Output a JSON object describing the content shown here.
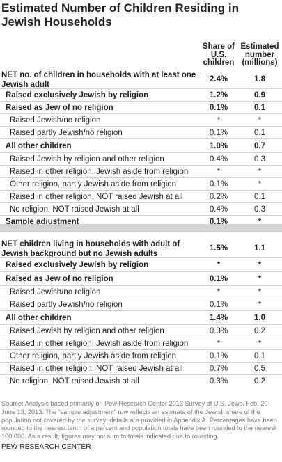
{
  "title": "Estimated Number of Children Residing in Jewish Households",
  "columns": {
    "share": "Share of U.S. children",
    "estimated": "Estimated number (millions)"
  },
  "section1": [
    {
      "label": "NET no. of children in households with at least one Jewish adult",
      "share": "2.4%",
      "estimated": "1.8",
      "bold": true,
      "indent": 0
    },
    {
      "label": "Raised exclusively Jewish by religion",
      "share": "1.2%",
      "estimated": "0.9",
      "bold": true,
      "indent": 1
    },
    {
      "label": "Raised as Jew of no religion",
      "share": "0.1%",
      "estimated": "0.1",
      "bold": true,
      "indent": 1
    },
    {
      "label": "Raised Jewish/no religion",
      "share": "*",
      "estimated": "*",
      "bold": false,
      "indent": 2
    },
    {
      "label": "Raised partly Jewish/no religion",
      "share": "0.1%",
      "estimated": "0.1",
      "bold": false,
      "indent": 2
    },
    {
      "label": "All other children",
      "share": "1.0%",
      "estimated": "0.7",
      "bold": true,
      "indent": 1
    },
    {
      "label": "Raised Jewish by religion and other religion",
      "share": "0.4%",
      "estimated": "0.3",
      "bold": false,
      "indent": 2
    },
    {
      "label": "Raised in other religion, Jewish aside from religion",
      "share": "*",
      "estimated": "*",
      "bold": false,
      "indent": 2
    },
    {
      "label": "Other religion, partly Jewish aside from religion",
      "share": "0.1%",
      "estimated": "*",
      "bold": false,
      "indent": 2
    },
    {
      "label": "Raised in other religion, NOT raised Jewish at all",
      "share": "0.2%",
      "estimated": "0.1",
      "bold": false,
      "indent": 2
    },
    {
      "label": "No religion, NOT raised Jewish at all",
      "share": "0.4%",
      "estimated": "0.3",
      "bold": false,
      "indent": 2
    },
    {
      "label": "Sample adjustment",
      "share": "0.1%",
      "estimated": "*",
      "bold": true,
      "indent": 1
    }
  ],
  "section2": [
    {
      "label": "NET children living in households with adult of Jewish background but no Jewish adults",
      "share": "1.5%",
      "estimated": "1.1",
      "bold": true,
      "indent": 0
    },
    {
      "label": "Raised exclusively Jewish by religion",
      "share": "*",
      "estimated": "*",
      "bold": true,
      "indent": 1
    },
    {
      "label": "Raised as Jew of no religion",
      "share": "0.1%",
      "estimated": "*",
      "bold": true,
      "indent": 1
    },
    {
      "label": "Raised Jewish/no religion",
      "share": "*",
      "estimated": "*",
      "bold": false,
      "indent": 2
    },
    {
      "label": "Raised partly Jewish/no religion",
      "share": "0.1%",
      "estimated": "*",
      "bold": false,
      "indent": 2
    },
    {
      "label": "All other children",
      "share": "1.4%",
      "estimated": "1.0",
      "bold": true,
      "indent": 1
    },
    {
      "label": "Raised Jewish by religion and other religion",
      "share": "0.3%",
      "estimated": "0.2",
      "bold": false,
      "indent": 2
    },
    {
      "label": "Raised in other religion, Jewish aside from religion",
      "share": "*",
      "estimated": "*",
      "bold": false,
      "indent": 2
    },
    {
      "label": "Other religion, partly Jewish aside from religion",
      "share": "0.1%",
      "estimated": "0.1",
      "bold": false,
      "indent": 2
    },
    {
      "label": "Raised in other religion, NOT raised Jewish at all",
      "share": "0.7%",
      "estimated": "0.5",
      "bold": false,
      "indent": 2
    },
    {
      "label": "No religion, NOT raised Jewish at all",
      "share": "0.3%",
      "estimated": "0.2",
      "bold": false,
      "indent": 2
    }
  ],
  "source": "Source: Analysis based primarily on Pew Research Center 2013 Survey of U.S. Jews, Feb. 20-June 13, 2013. The “sample adjustment” row reflects an estimate of the Jewish share of the population not covered by the survey; details are provided in Appendix A. Percentages have been rounded to the nearest tenth of a percent and population totals have been rounded to the nearest 100,000. As a result, figures may not sum to totals indicated due to rounding.",
  "organization": "PEW RESEARCH CENTER"
}
